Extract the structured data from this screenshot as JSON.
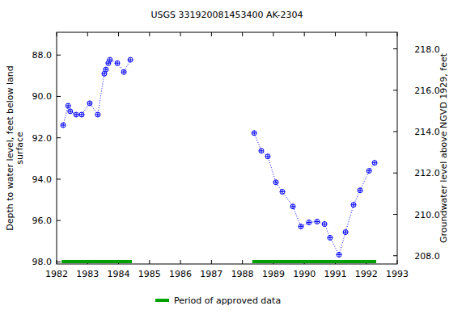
{
  "chart_data": {
    "type": "line",
    "title": "USGS 331920081453400 AK-2304",
    "y_label": [
      "Depth to water level, feet below land",
      "surface"
    ],
    "y2_label": "Groundwater level above NGVD 1929, feet",
    "xlim": [
      1982,
      1993
    ],
    "xticks": [
      1982,
      1983,
      1984,
      1985,
      1986,
      1987,
      1988,
      1989,
      1990,
      1991,
      1992,
      1993
    ],
    "ylim": [
      98.1,
      86.9
    ],
    "yticks": [
      {
        "value": 88,
        "label": "88.0"
      },
      {
        "value": 90,
        "label": "90.0"
      },
      {
        "value": 92,
        "label": "92.0"
      },
      {
        "value": 94,
        "label": "94.0"
      },
      {
        "value": 96,
        "label": "96.0"
      },
      {
        "value": 98,
        "label": "98.0"
      }
    ],
    "y2lim": [
      207.6,
      218.8
    ],
    "y2ticks": [
      {
        "value": 208,
        "label": "208.0"
      },
      {
        "value": 210,
        "label": "210.0"
      },
      {
        "value": 212,
        "label": "212.0"
      },
      {
        "value": 214,
        "label": "214.0"
      },
      {
        "value": 216,
        "label": "216.0"
      },
      {
        "value": 218,
        "label": "218.0"
      }
    ],
    "x": [
      1982.21,
      1982.37,
      1982.44,
      1982.63,
      1982.81,
      1983.07,
      1983.33,
      1983.54,
      1983.59,
      1983.67,
      1983.72,
      1983.96,
      1984.17,
      1984.38,
      1986.4,
      1988.38,
      1988.61,
      1988.82,
      1989.08,
      1989.29,
      1989.63,
      1989.89,
      1990.15,
      1990.41,
      1990.65,
      1990.83,
      1991.12,
      1991.33,
      1991.59,
      1991.8,
      1992.09,
      1992.27
    ],
    "series": [
      {
        "name": "AK-2304",
        "color": "#0000ff",
        "marker": "circle-plus",
        "line_style": "dotted",
        "values": [
          91.39,
          90.45,
          90.72,
          90.88,
          90.88,
          90.33,
          90.88,
          88.9,
          88.7,
          88.39,
          88.23,
          88.39,
          88.82,
          88.23,
          null,
          91.77,
          92.63,
          92.9,
          94.15,
          94.61,
          95.32,
          96.29,
          96.09,
          96.05,
          96.17,
          96.83,
          97.65,
          96.56,
          95.24,
          94.54,
          93.6,
          93.21
        ]
      }
    ],
    "approved_periods": {
      "name": "Period of approved data",
      "color": "#00a000",
      "ranges": [
        [
          1982.16,
          1984.43
        ],
        [
          1988.32,
          1992.32
        ]
      ]
    }
  }
}
